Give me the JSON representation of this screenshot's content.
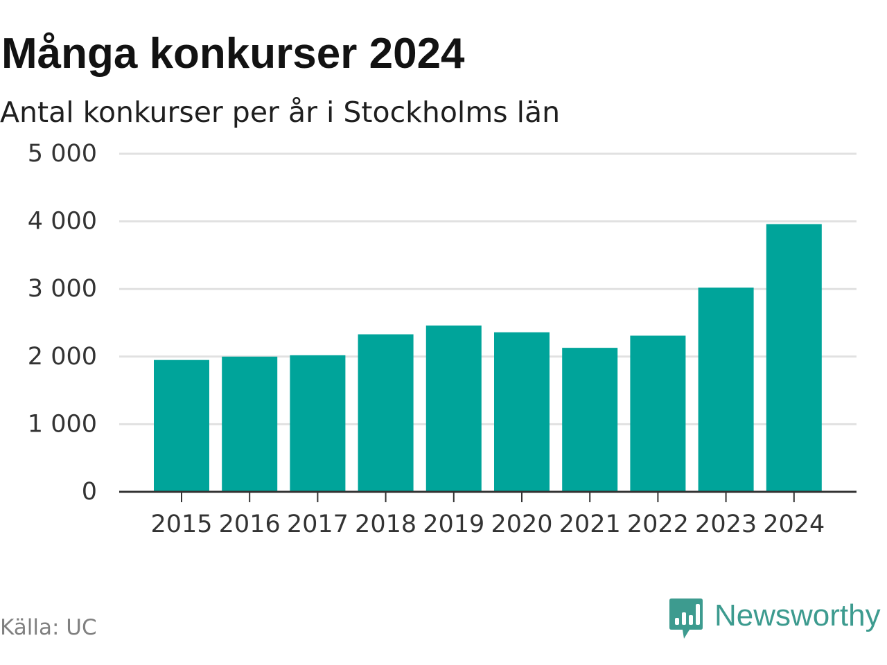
{
  "chart_data": {
    "type": "bar",
    "title": "Många konkurser 2024",
    "subtitle": "Antal konkurser per år i Stockholms län",
    "categories": [
      "2015",
      "2016",
      "2017",
      "2018",
      "2019",
      "2020",
      "2021",
      "2022",
      "2023",
      "2024"
    ],
    "values": [
      1950,
      2000,
      2020,
      2330,
      2460,
      2360,
      2130,
      2310,
      3020,
      3960
    ],
    "y_ticks": [
      0,
      1000,
      2000,
      3000,
      4000,
      5000
    ],
    "y_tick_labels": [
      "0",
      "1 000",
      "2 000",
      "3 000",
      "4 000",
      "5 000"
    ],
    "ylim": [
      0,
      5000
    ],
    "xlabel": "",
    "ylabel": "",
    "grid": true,
    "legend": "none",
    "bar_color": "#00a49a",
    "grid_color": "#e1e1e1",
    "axis_color": "#333333"
  },
  "source": "Källa: UC",
  "brand": {
    "name": "Newsworthy",
    "icon": "newsworthy-logo-icon",
    "color": "#3d9b8f"
  }
}
